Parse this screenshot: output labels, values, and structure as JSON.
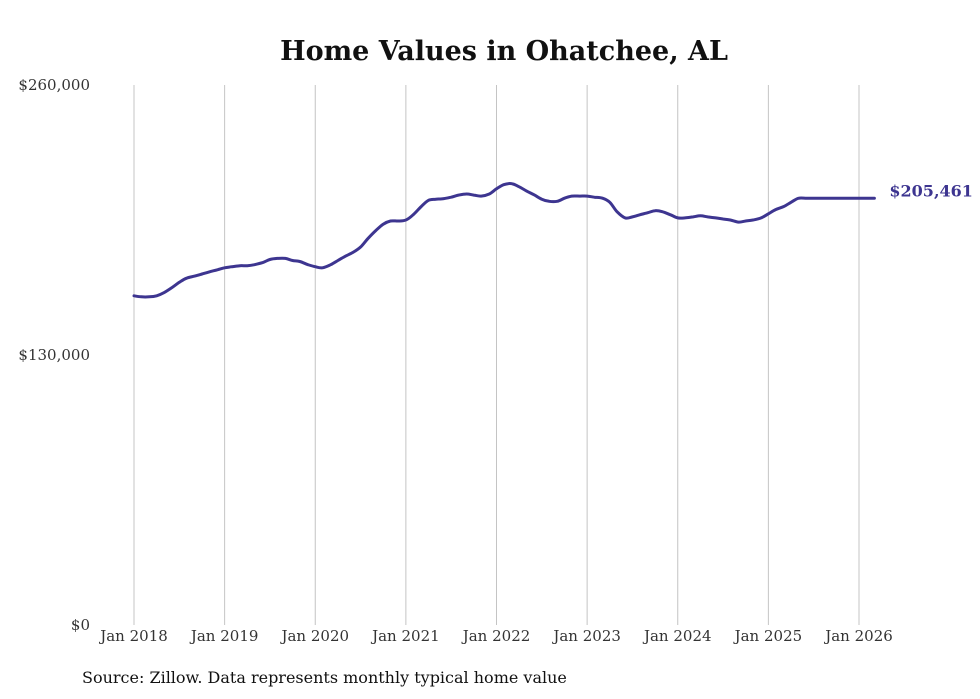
{
  "colors": {
    "line": "#3d3590",
    "grid": "#c4c4c4",
    "text": "#333333"
  },
  "source_text": "Source: Zillow. Data represents monthly typical home value",
  "chart_data": {
    "type": "line",
    "title": "Home Values in Ohatchee, AL",
    "xlabel": "",
    "ylabel": "",
    "ylim": [
      0,
      260000
    ],
    "y_ticks": [
      {
        "value": 0,
        "label": "$0"
      },
      {
        "value": 130000,
        "label": "$130,000"
      },
      {
        "value": 260000,
        "label": "$260,000"
      }
    ],
    "x_ticks": [
      {
        "value": 2018.0,
        "label": "Jan 2018"
      },
      {
        "value": 2019.0,
        "label": "Jan 2019"
      },
      {
        "value": 2020.0,
        "label": "Jan 2020"
      },
      {
        "value": 2021.0,
        "label": "Jan 2021"
      },
      {
        "value": 2022.0,
        "label": "Jan 2022"
      },
      {
        "value": 2023.0,
        "label": "Jan 2023"
      },
      {
        "value": 2024.0,
        "label": "Jan 2024"
      },
      {
        "value": 2025.0,
        "label": "Jan 2025"
      },
      {
        "value": 2026.0,
        "label": "Jan 2026"
      }
    ],
    "xlim": [
      2018.0,
      2026.17
    ],
    "end_label": "$205,461",
    "series": [
      {
        "name": "Typical home value",
        "x": [
          2018.0,
          2018.08,
          2018.17,
          2018.25,
          2018.33,
          2018.42,
          2018.5,
          2018.58,
          2018.67,
          2018.75,
          2018.83,
          2018.92,
          2019.0,
          2019.08,
          2019.17,
          2019.25,
          2019.33,
          2019.42,
          2019.5,
          2019.58,
          2019.67,
          2019.75,
          2019.83,
          2019.92,
          2020.0,
          2020.08,
          2020.17,
          2020.25,
          2020.33,
          2020.42,
          2020.5,
          2020.58,
          2020.67,
          2020.75,
          2020.83,
          2020.92,
          2021.0,
          2021.08,
          2021.17,
          2021.25,
          2021.33,
          2021.42,
          2021.5,
          2021.58,
          2021.67,
          2021.75,
          2021.83,
          2021.92,
          2022.0,
          2022.08,
          2022.17,
          2022.25,
          2022.33,
          2022.42,
          2022.5,
          2022.58,
          2022.67,
          2022.75,
          2022.83,
          2022.92,
          2023.0,
          2023.08,
          2023.17,
          2023.25,
          2023.33,
          2023.42,
          2023.5,
          2023.58,
          2023.67,
          2023.75,
          2023.83,
          2023.92,
          2024.0,
          2024.08,
          2024.17,
          2024.25,
          2024.33,
          2024.42,
          2024.5,
          2024.58,
          2024.67,
          2024.75,
          2024.83,
          2024.92,
          2025.0,
          2025.08,
          2025.17,
          2025.25,
          2025.33,
          2025.42,
          2025.5,
          2025.58,
          2025.67,
          2025.75,
          2025.83,
          2025.92,
          2026.0,
          2026.08,
          2026.17
        ],
        "values": [
          158500,
          158000,
          158000,
          158500,
          160000,
          162500,
          165000,
          167000,
          168000,
          169000,
          170000,
          171000,
          172000,
          172500,
          173000,
          173000,
          173500,
          174500,
          176000,
          176500,
          176500,
          175500,
          175000,
          173500,
          172500,
          172000,
          173500,
          175500,
          177500,
          179500,
          182000,
          186000,
          190000,
          193000,
          194500,
          194500,
          195000,
          197500,
          201500,
          204500,
          205000,
          205300,
          206000,
          207000,
          207500,
          207000,
          206500,
          207500,
          210000,
          212000,
          212500,
          211000,
          209000,
          207000,
          205000,
          204000,
          204000,
          205500,
          206500,
          206500,
          206500,
          206000,
          205500,
          203500,
          199000,
          196000,
          196500,
          197500,
          198500,
          199500,
          199000,
          197500,
          196000,
          196000,
          196500,
          197000,
          196500,
          196000,
          195500,
          195000,
          194000,
          194500,
          195000,
          196000,
          198000,
          200000,
          201500,
          203500,
          205461,
          205461,
          205461,
          205461,
          205461,
          205461,
          205461,
          205461,
          205461,
          205461,
          205461
        ]
      }
    ]
  }
}
